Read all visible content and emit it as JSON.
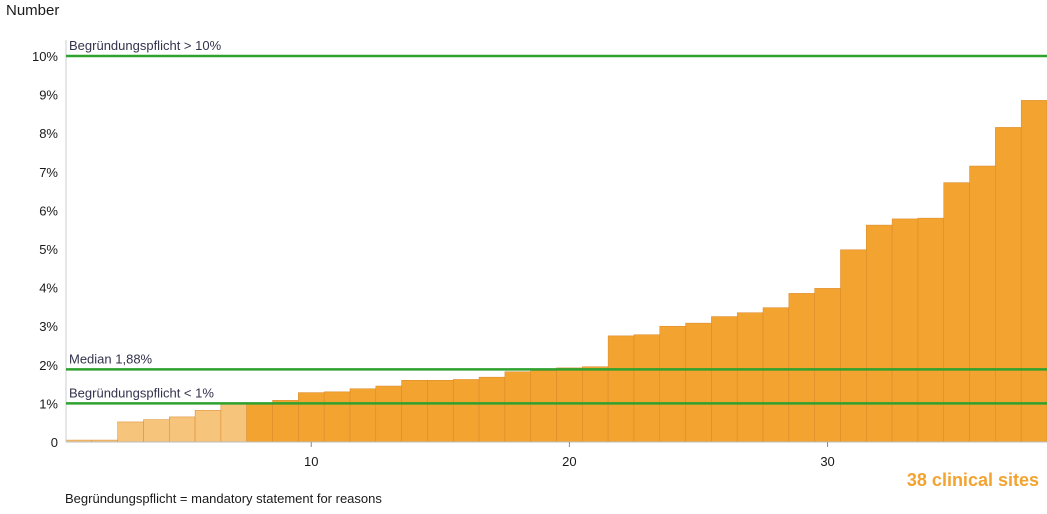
{
  "chart_data": {
    "type": "bar",
    "ylabel": "Number",
    "y_ticks": [
      "0",
      "1%",
      "2%",
      "3%",
      "4%",
      "5%",
      "6%",
      "7%",
      "8%",
      "9%",
      "10%"
    ],
    "ylim": [
      0,
      10.5
    ],
    "x_ticks": [
      10,
      20,
      30
    ],
    "xlim": [
      0.5,
      38.5
    ],
    "categories": [
      1,
      2,
      3,
      4,
      5,
      6,
      7,
      8,
      9,
      10,
      11,
      12,
      13,
      14,
      15,
      16,
      17,
      18,
      19,
      20,
      21,
      22,
      23,
      24,
      25,
      26,
      27,
      28,
      29,
      30,
      31,
      32,
      33,
      34,
      35,
      36,
      37,
      38
    ],
    "values": [
      0.05,
      0.05,
      0.52,
      0.58,
      0.65,
      0.82,
      0.98,
      1.0,
      1.08,
      1.28,
      1.3,
      1.38,
      1.45,
      1.6,
      1.6,
      1.62,
      1.68,
      1.82,
      1.85,
      1.92,
      1.95,
      2.75,
      2.78,
      3.0,
      3.08,
      3.25,
      3.35,
      3.48,
      3.85,
      3.98,
      4.98,
      5.62,
      5.78,
      5.8,
      6.72,
      7.15,
      8.15,
      8.85
    ],
    "light_count": 7,
    "colors": {
      "bar": "#f2a330",
      "bar_light": "#f6c47a",
      "bar_edge": "#d9872a",
      "reference_line": "#2ea12e",
      "sites_label": "#f2a330"
    },
    "reference_lines": [
      {
        "value": 10,
        "label": "Begründungspflicht > 10%"
      },
      {
        "value": 1.88,
        "label": "Median 1,88%"
      },
      {
        "value": 1.0,
        "label": "Begründungspflicht < 1%"
      }
    ],
    "grid": false
  },
  "sites_label": "38 clinical sites",
  "footnote": "Begründungspflicht = mandatory statement for reasons"
}
